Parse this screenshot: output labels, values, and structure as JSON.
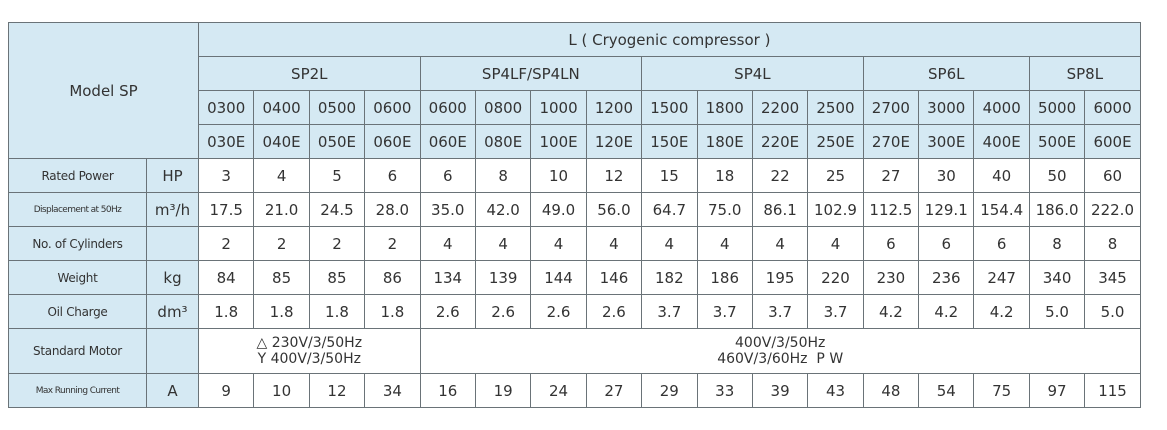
{
  "header": {
    "model": "Model SP",
    "series": "L ( Cryogenic compressor )",
    "groups": [
      "SP2L",
      "SP4LF/SP4LN",
      "SP4L",
      "SP6L",
      "SP8L"
    ],
    "codes": [
      "0300",
      "0400",
      "0500",
      "0600",
      "0600",
      "0800",
      "1000",
      "1200",
      "1500",
      "1800",
      "2200",
      "2500",
      "2700",
      "3000",
      "4000",
      "5000",
      "6000"
    ],
    "codes_e": [
      "030E",
      "040E",
      "050E",
      "060E",
      "060E",
      "080E",
      "100E",
      "120E",
      "150E",
      "180E",
      "220E",
      "250E",
      "270E",
      "300E",
      "400E",
      "500E",
      "600E"
    ]
  },
  "rows": [
    {
      "label": "Rated Power",
      "unit": "HP",
      "values": [
        3,
        4,
        5,
        6,
        6,
        8,
        10,
        12,
        15,
        18,
        22,
        25,
        27,
        30,
        40,
        50,
        60
      ]
    },
    {
      "label": "Displacement at 50Hz",
      "unit": "m³/h",
      "values": [
        "17.5",
        "21.0",
        "24.5",
        "28.0",
        "35.0",
        "42.0",
        "49.0",
        "56.0",
        "64.7",
        "75.0",
        "86.1",
        "102.9",
        "112.5",
        "129.1",
        "154.4",
        "186.0",
        "222.0"
      ]
    },
    {
      "label": "No. of Cylinders",
      "values": [
        2,
        2,
        2,
        2,
        4,
        4,
        4,
        4,
        4,
        4,
        4,
        4,
        6,
        6,
        6,
        8,
        8
      ]
    },
    {
      "label": "Weight",
      "unit": "kg",
      "values": [
        84,
        85,
        85,
        86,
        134,
        139,
        144,
        146,
        182,
        186,
        195,
        220,
        230,
        236,
        247,
        340,
        345
      ]
    },
    {
      "label": "Oil Charge",
      "unit": "dm³",
      "values": [
        "1.8",
        "1.8",
        "1.8",
        "1.8",
        "2.6",
        "2.6",
        "2.6",
        "2.6",
        "3.7",
        "3.7",
        "3.7",
        "3.7",
        "4.2",
        "4.2",
        "4.2",
        "5.0",
        "5.0"
      ]
    },
    {
      "label": "Standard Motor",
      "motors": [
        [
          "△ 230V/3/50Hz",
          "Y 400V/3/50Hz"
        ],
        [
          "400V/3/50Hz",
          "460V/3/60Hz  P W"
        ]
      ]
    },
    {
      "label": "Max Running Current",
      "unit": "A",
      "values": [
        9,
        10,
        12,
        34,
        16,
        19,
        24,
        27,
        29,
        33,
        39,
        43,
        48,
        54,
        75,
        97,
        115
      ]
    }
  ]
}
